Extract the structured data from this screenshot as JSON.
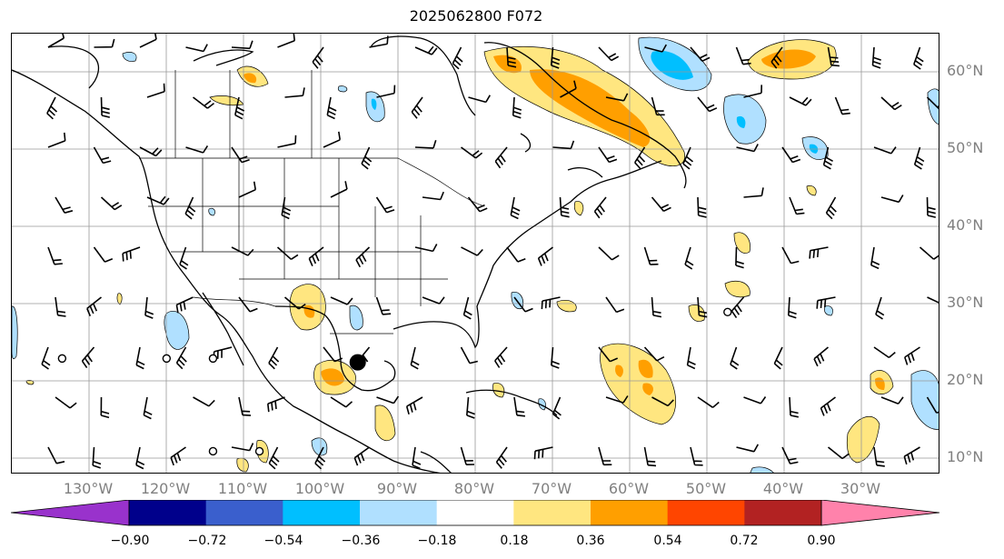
{
  "title": "2025062800 F072",
  "map": {
    "lon_labels": [
      "130°W",
      "120°W",
      "110°W",
      "100°W",
      "90°W",
      "80°W",
      "70°W",
      "60°W",
      "50°W",
      "40°W",
      "30°W"
    ],
    "lat_labels": [
      "60°N",
      "50°N",
      "40°N",
      "30°N",
      "20°N",
      "10°N"
    ],
    "lon_range": [
      -142,
      -22
    ],
    "lat_range": [
      8,
      65
    ],
    "gridlines": true
  },
  "colorbar": {
    "ticks": [
      "−0.90",
      "−0.72",
      "−0.54",
      "−0.36",
      "−0.18",
      "0.18",
      "0.36",
      "0.54",
      "0.72",
      "0.90"
    ],
    "colors": [
      "#9932cc",
      "#00008b",
      "#3a5fcd",
      "#00bfff",
      "#b0e0ff",
      "#ffffff",
      "#ffe680",
      "#ff9f00",
      "#ff4500",
      "#b22222",
      "#ff82ab"
    ],
    "extend": "both"
  },
  "markers": {
    "dots": [
      {
        "lon": -97.3,
        "lat": 22.5
      }
    ],
    "circles": [
      {
        "lon": -135.5,
        "lat": 23.0
      },
      {
        "lon": -122.0,
        "lat": 23.0
      },
      {
        "lon": -116.0,
        "lat": 23.0
      },
      {
        "lon": -116.0,
        "lat": 11.0
      },
      {
        "lon": -110.0,
        "lat": 11.0
      },
      {
        "lon": -49.5,
        "lat": 29.0
      }
    ]
  }
}
